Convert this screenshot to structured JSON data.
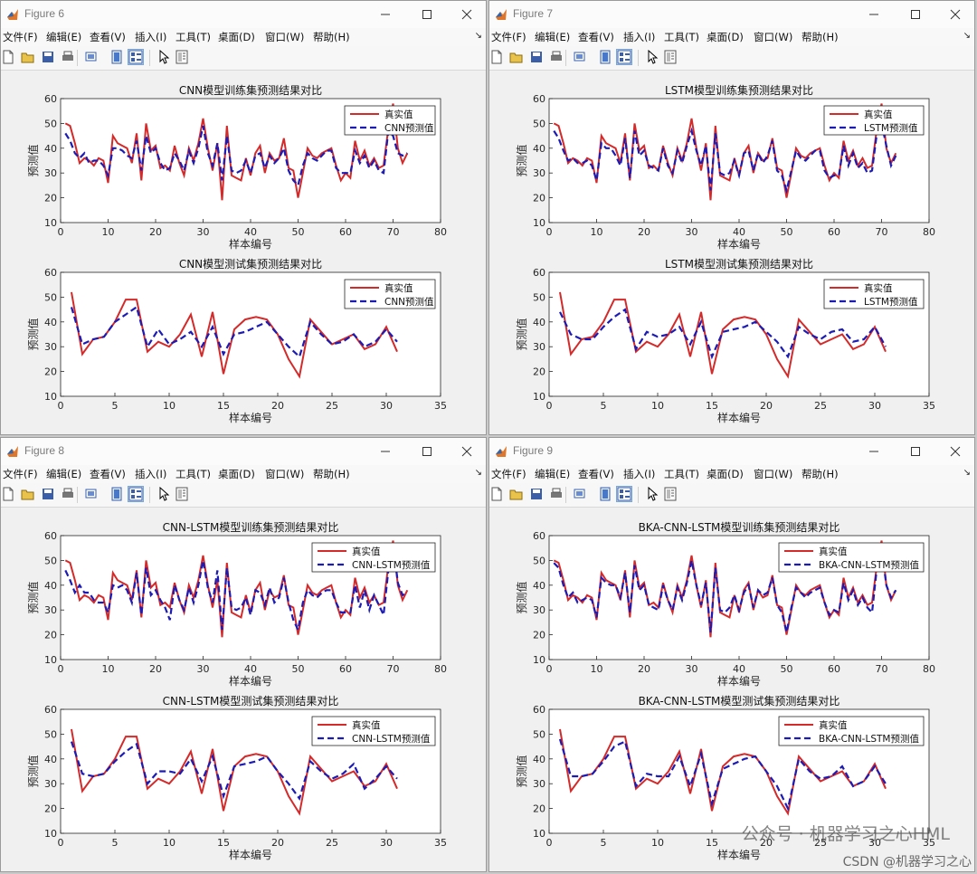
{
  "menu_labels": [
    "文件(F)",
    "编辑(E)",
    "查看(V)",
    "插入(I)",
    "工具(T)",
    "桌面(D)",
    "窗口(W)",
    "帮助(H)"
  ],
  "toolbar_icons": [
    "new-figure-icon",
    "open-file-icon",
    "save-icon",
    "print-icon",
    "print-preview-icon",
    "dock-icon",
    "property-editor-icon",
    "pointer-icon",
    "plot-tools-icon"
  ],
  "colors": {
    "real": "#d42a2a",
    "pred": "#1c1cb4",
    "axes_bg": "#ffffff",
    "figure_bg": "#f0f0f0"
  },
  "watermark": {
    "main": "公众号 · 机器学习之心HML",
    "csdn": "CSDN @机器学习之心"
  },
  "windows": [
    {
      "title": "Figure 6",
      "train": {
        "title": "CNN模型训练集预测结果对比",
        "legend": [
          "真实值",
          "CNN预测值"
        ]
      },
      "test": {
        "title": "CNN模型测试集预测结果对比",
        "legend": [
          "真实值",
          "CNN预测值"
        ]
      }
    },
    {
      "title": "Figure 7",
      "train": {
        "title": "LSTM模型训练集预测结果对比",
        "legend": [
          "真实值",
          "LSTM预测值"
        ]
      },
      "test": {
        "title": "LSTM模型测试集预测结果对比",
        "legend": [
          "真实值",
          "LSTM预测值"
        ]
      }
    },
    {
      "title": "Figure 8",
      "train": {
        "title": "CNN-LSTM模型训练集预测结果对比",
        "legend": [
          "真实值",
          "CNN-LSTM预测值"
        ]
      },
      "test": {
        "title": "CNN-LSTM模型测试集预测结果对比",
        "legend": [
          "真实值",
          "CNN-LSTM预测值"
        ]
      }
    },
    {
      "title": "Figure 9",
      "train": {
        "title": "BKA-CNN-LSTM模型训练集预测结果对比",
        "legend": [
          "真实值",
          "BKA-CNN-LSTM预测值"
        ]
      },
      "test": {
        "title": "BKA-CNN-LSTM模型测试集预测结果对比",
        "legend": [
          "真实值",
          "BKA-CNN-LSTM预测值"
        ]
      }
    }
  ],
  "chart_data": {
    "type": "line",
    "xlabel": "样本编号",
    "ylabel": "预测值",
    "ylim": [
      10,
      60
    ],
    "yticks": [
      10,
      20,
      30,
      40,
      50,
      60
    ],
    "train": {
      "xlim": [
        0,
        80
      ],
      "xticks": [
        0,
        10,
        20,
        30,
        40,
        50,
        60,
        70,
        80
      ],
      "real": [
        50,
        49,
        42,
        34,
        36,
        35,
        33,
        36,
        35,
        26,
        45,
        42,
        41,
        40,
        34,
        46,
        27,
        50,
        39,
        41,
        32,
        33,
        31,
        41,
        34,
        29,
        40,
        35,
        42,
        52,
        40,
        31,
        42,
        19,
        49,
        29,
        28,
        27,
        36,
        29,
        38,
        41,
        30,
        38,
        35,
        36,
        44,
        32,
        31,
        20,
        30,
        40,
        37,
        36,
        38,
        39,
        40,
        33,
        27,
        30,
        28,
        43,
        35,
        39,
        33,
        36,
        32,
        33,
        48,
        58,
        40,
        34,
        38
      ],
      "preds": [
        [
          46,
          43,
          38,
          36,
          38,
          34,
          35,
          35,
          33,
          29,
          40,
          40,
          39,
          37,
          36,
          43,
          31,
          45,
          38,
          40,
          34,
          31,
          32,
          38,
          35,
          31,
          39,
          34,
          40,
          49,
          38,
          33,
          42,
          27,
          45,
          31,
          30,
          31,
          35,
          30,
          37,
          38,
          32,
          37,
          34,
          36,
          40,
          31,
          27,
          25,
          33,
          38,
          36,
          35,
          37,
          39,
          39,
          32,
          30,
          30,
          30,
          39,
          34,
          37,
          32,
          35,
          31,
          30,
          47,
          45,
          38,
          37,
          38
        ],
        [
          47,
          44,
          39,
          35,
          36,
          34,
          34,
          35,
          33,
          27,
          42,
          40,
          40,
          37,
          33,
          44,
          28,
          47,
          37,
          39,
          33,
          32,
          31,
          40,
          33,
          30,
          39,
          34,
          41,
          47,
          39,
          33,
          41,
          23,
          46,
          30,
          29,
          30,
          35,
          29,
          38,
          39,
          31,
          38,
          34,
          37,
          43,
          31,
          29,
          23,
          31,
          39,
          36,
          35,
          37,
          39,
          39,
          31,
          28,
          29,
          29,
          41,
          33,
          38,
          32,
          34,
          30,
          31,
          46,
          50,
          41,
          33,
          37
        ],
        [
          46,
          42,
          37,
          40,
          37,
          37,
          34,
          33,
          33,
          29,
          40,
          39,
          40,
          38,
          33,
          45,
          28,
          47,
          36,
          38,
          34,
          31,
          26,
          40,
          34,
          30,
          39,
          33,
          40,
          50,
          39,
          33,
          46,
          22,
          47,
          31,
          30,
          31,
          35,
          28,
          38,
          37,
          32,
          39,
          33,
          35,
          43,
          33,
          26,
          22,
          33,
          38,
          36,
          35,
          37,
          38,
          38,
          33,
          29,
          29,
          29,
          40,
          31,
          38,
          30,
          36,
          32,
          28,
          46,
          57,
          41,
          36,
          37
        ],
        [
          49,
          47,
          40,
          35,
          37,
          33,
          34,
          35,
          34,
          27,
          43,
          41,
          40,
          40,
          35,
          45,
          29,
          48,
          38,
          40,
          32,
          31,
          30,
          40,
          34,
          30,
          39,
          34,
          41,
          50,
          40,
          32,
          41,
          21,
          47,
          30,
          29,
          31,
          36,
          30,
          37,
          40,
          31,
          38,
          36,
          37,
          43,
          32,
          29,
          21,
          31,
          39,
          37,
          35,
          37,
          38,
          39,
          33,
          28,
          30,
          29,
          41,
          34,
          38,
          32,
          35,
          31,
          29,
          47,
          55,
          40,
          35,
          38
        ]
      ]
    },
    "test": {
      "xlim": [
        0,
        35
      ],
      "xticks": [
        0,
        5,
        10,
        15,
        20,
        25,
        30,
        35
      ],
      "real": [
        52,
        27,
        33,
        34,
        40,
        49,
        49,
        28,
        32,
        30,
        35,
        43,
        26,
        44,
        19,
        37,
        41,
        42,
        41,
        35,
        25,
        18,
        41,
        36,
        31,
        33,
        35,
        29,
        31,
        38,
        28
      ],
      "preds": [
        [
          46,
          31,
          33,
          34,
          40,
          43,
          46,
          30,
          37,
          31,
          33,
          36,
          30,
          38,
          27,
          35,
          36,
          38,
          40,
          35,
          30,
          26,
          40,
          35,
          31,
          32,
          35,
          30,
          32,
          37,
          32
        ],
        [
          44,
          35,
          33,
          33,
          38,
          42,
          45,
          29,
          36,
          34,
          35,
          38,
          31,
          40,
          26,
          36,
          37,
          38,
          40,
          36,
          32,
          26,
          38,
          35,
          33,
          36,
          37,
          32,
          33,
          38,
          30
        ],
        [
          47,
          34,
          33,
          34,
          39,
          43,
          46,
          30,
          35,
          35,
          34,
          40,
          31,
          41,
          25,
          37,
          38,
          39,
          41,
          35,
          30,
          24,
          39,
          35,
          32,
          34,
          38,
          28,
          32,
          37,
          32
        ],
        [
          48,
          33,
          33,
          34,
          39,
          45,
          47,
          29,
          34,
          33,
          33,
          41,
          29,
          42,
          22,
          36,
          38,
          40,
          41,
          35,
          29,
          20,
          40,
          35,
          32,
          33,
          37,
          29,
          31,
          37,
          30
        ]
      ]
    }
  }
}
